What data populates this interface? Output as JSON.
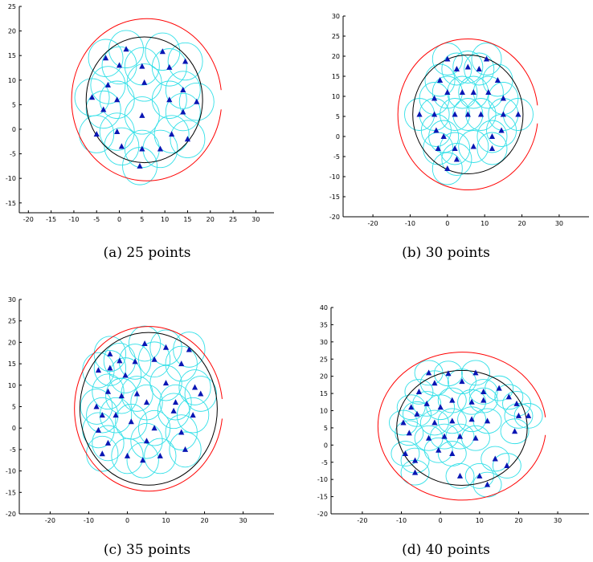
{
  "chart_data": [
    {
      "type": "scatter",
      "caption": "(a)  25 points",
      "xlim": [
        -22,
        34
      ],
      "ylim": [
        -17,
        25
      ],
      "xticks": [
        -20,
        -15,
        -10,
        -5,
        0,
        5,
        10,
        15,
        20,
        25,
        30
      ],
      "yticks": [
        -15,
        -10,
        -5,
        0,
        5,
        10,
        15,
        20,
        25
      ],
      "grid": false,
      "coverage_radius": 3.8,
      "circles": [
        {
          "name": "outer",
          "color": "#ff0000",
          "cx": 6,
          "cy": 6,
          "r": 16.5,
          "gap": true
        },
        {
          "name": "inner",
          "color": "#000000",
          "cx": 5.5,
          "cy": 6,
          "r": 12.8
        }
      ],
      "points": [
        [
          -3,
          14.5
        ],
        [
          1.5,
          16.3
        ],
        [
          9.5,
          15.8
        ],
        [
          14.5,
          13.8
        ],
        [
          -2.5,
          9
        ],
        [
          0,
          13
        ],
        [
          5,
          12.8
        ],
        [
          11,
          12.6
        ],
        [
          -6,
          6.5
        ],
        [
          -0.5,
          6
        ],
        [
          5.5,
          9.5
        ],
        [
          11,
          6
        ],
        [
          14,
          8
        ],
        [
          17,
          5.6
        ],
        [
          -3.5,
          4
        ],
        [
          14,
          3.5
        ],
        [
          5,
          2.8
        ],
        [
          -5,
          -1
        ],
        [
          -0.5,
          -0.5
        ],
        [
          11.5,
          -1
        ],
        [
          0.5,
          -3.5
        ],
        [
          15,
          -2
        ],
        [
          5,
          -4
        ],
        [
          9,
          -4
        ],
        [
          4.5,
          -7.5
        ]
      ]
    },
    {
      "type": "scatter",
      "caption": "(b)  30 points",
      "xlim": [
        -28,
        38
      ],
      "ylim": [
        -20,
        30
      ],
      "xticks": [
        -20,
        -10,
        0,
        10,
        20,
        30
      ],
      "yticks": [
        -20,
        -15,
        -10,
        -5,
        0,
        5,
        10,
        15,
        20,
        25,
        30
      ],
      "grid": false,
      "coverage_radius": 4.0,
      "circles": [
        {
          "name": "outer",
          "color": "#ff0000",
          "cx": 5.5,
          "cy": 5.5,
          "r": 18.8,
          "gap": true
        },
        {
          "name": "inner",
          "color": "#000000",
          "cx": 5.5,
          "cy": 5.5,
          "r": 14.8
        }
      ],
      "points": [
        [
          0,
          19.3
        ],
        [
          10.5,
          19.3
        ],
        [
          2.5,
          16.8
        ],
        [
          5.5,
          17.3
        ],
        [
          8.5,
          16.8
        ],
        [
          -2,
          14
        ],
        [
          13.5,
          14
        ],
        [
          -3.5,
          9.5
        ],
        [
          0,
          11
        ],
        [
          4,
          11
        ],
        [
          7,
          11
        ],
        [
          11,
          11
        ],
        [
          15,
          9.5
        ],
        [
          -7.5,
          5.5
        ],
        [
          -3.5,
          5.5
        ],
        [
          2,
          5.5
        ],
        [
          5.5,
          5.5
        ],
        [
          9,
          5.5
        ],
        [
          15,
          5.5
        ],
        [
          19,
          5.5
        ],
        [
          -3,
          1.5
        ],
        [
          -1,
          0
        ],
        [
          12,
          0
        ],
        [
          14.5,
          1.5
        ],
        [
          -2.5,
          -3
        ],
        [
          2,
          -3
        ],
        [
          7,
          -2.5
        ],
        [
          12,
          -3
        ],
        [
          0,
          -8
        ],
        [
          2.5,
          -5.7
        ]
      ]
    },
    {
      "type": "scatter",
      "caption": "(c)  35 points",
      "xlim": [
        -28,
        38
      ],
      "ylim": [
        -20,
        30
      ],
      "xticks": [
        -20,
        -10,
        0,
        10,
        20,
        30
      ],
      "yticks": [
        -20,
        -15,
        -10,
        -5,
        0,
        5,
        10,
        15,
        20,
        25,
        30
      ],
      "grid": false,
      "coverage_radius": 4.1,
      "circles": [
        {
          "name": "outer",
          "color": "#ff0000",
          "cx": 5.5,
          "cy": 4.5,
          "r": 19.2,
          "gap": true
        },
        {
          "name": "inner",
          "color": "#000000",
          "cx": 5.5,
          "cy": 4.5,
          "r": 17.8
        }
      ],
      "points": [
        [
          -4.5,
          17.3
        ],
        [
          4.5,
          19.7
        ],
        [
          10,
          18.8
        ],
        [
          16,
          18.3
        ],
        [
          -7.5,
          13.5
        ],
        [
          -4.5,
          14
        ],
        [
          -2,
          15.7
        ],
        [
          2,
          15.5
        ],
        [
          7,
          16
        ],
        [
          14,
          15
        ],
        [
          -5,
          8.5
        ],
        [
          -0.5,
          12.3
        ],
        [
          2.5,
          8
        ],
        [
          10,
          10.5
        ],
        [
          17.5,
          9.5
        ],
        [
          19,
          8
        ],
        [
          -8,
          5
        ],
        [
          -1.5,
          7.5
        ],
        [
          5,
          6
        ],
        [
          12.5,
          6
        ],
        [
          -6.5,
          3
        ],
        [
          -3,
          3
        ],
        [
          12,
          4
        ],
        [
          17,
          3
        ],
        [
          -7.5,
          -0.5
        ],
        [
          1,
          1.5
        ],
        [
          7,
          0
        ],
        [
          14,
          -1
        ],
        [
          -5,
          -3.5
        ],
        [
          5,
          -3
        ],
        [
          -6.5,
          -6
        ],
        [
          0,
          -6.5
        ],
        [
          4,
          -7.5
        ],
        [
          8.5,
          -6.5
        ],
        [
          15,
          -5
        ]
      ]
    },
    {
      "type": "scatter",
      "caption": "(d)  40 points",
      "xlim": [
        -28,
        38
      ],
      "ylim": [
        -20,
        40
      ],
      "xticks": [
        -20,
        -10,
        0,
        10,
        20,
        30
      ],
      "yticks": [
        -20,
        -15,
        -10,
        -5,
        0,
        5,
        10,
        15,
        20,
        25,
        30,
        35,
        40
      ],
      "grid": false,
      "coverage_radius": 3.6,
      "circles": [
        {
          "name": "outer",
          "color": "#ff0000",
          "cx": 5.5,
          "cy": 5.5,
          "r": 21.5,
          "gap": true
        },
        {
          "name": "inner",
          "color": "#000000",
          "cx": 5.5,
          "cy": 5.0,
          "r": 16.7
        }
      ],
      "points": [
        [
          -3,
          21
        ],
        [
          2,
          20.8
        ],
        [
          5.5,
          18.5
        ],
        [
          9,
          21
        ],
        [
          -5.5,
          15.5
        ],
        [
          -1.5,
          18
        ],
        [
          11,
          15.5
        ],
        [
          15,
          16.5
        ],
        [
          -7.5,
          11
        ],
        [
          -3.5,
          12
        ],
        [
          0,
          11
        ],
        [
          3,
          13
        ],
        [
          8,
          12.5
        ],
        [
          11,
          13
        ],
        [
          17.5,
          14
        ],
        [
          19.5,
          12
        ],
        [
          -9.5,
          6.5
        ],
        [
          -6,
          9
        ],
        [
          -1.5,
          6.5
        ],
        [
          3,
          7
        ],
        [
          8,
          7.5
        ],
        [
          12,
          7
        ],
        [
          20,
          8.5
        ],
        [
          22.5,
          8.5
        ],
        [
          -8,
          3.5
        ],
        [
          -3,
          2
        ],
        [
          1,
          2.5
        ],
        [
          5,
          2.5
        ],
        [
          9,
          2
        ],
        [
          19,
          4
        ],
        [
          -9,
          -2.5
        ],
        [
          -6.5,
          -4.5
        ],
        [
          -0.5,
          -1.5
        ],
        [
          3,
          -2.5
        ],
        [
          14,
          -4
        ],
        [
          17,
          -6
        ],
        [
          -6.5,
          -8
        ],
        [
          5,
          -9
        ],
        [
          10,
          -9
        ],
        [
          12,
          -11.5
        ]
      ]
    }
  ]
}
